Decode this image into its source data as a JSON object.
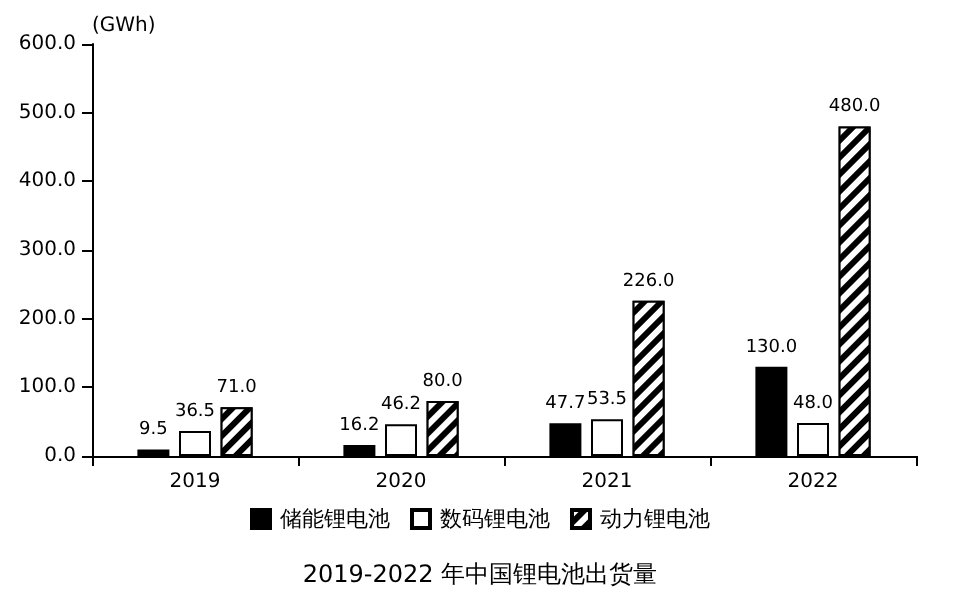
{
  "chart_data": {
    "type": "bar",
    "title": "2019-2022 年中国锂电池出货量",
    "ylabel": "(GWh)",
    "categories": [
      "2019",
      "2020",
      "2021",
      "2022"
    ],
    "series": [
      {
        "name": "储能锂电池",
        "color": "#000000",
        "values": [
          9.5,
          16.2,
          47.7,
          130.0
        ],
        "value_labels": [
          "9.5",
          "16.2",
          "47.7",
          "130.0"
        ]
      },
      {
        "name": "数码锂电池",
        "color": "#ffffff",
        "values": [
          36.5,
          46.2,
          53.5,
          48.0
        ],
        "value_labels": [
          "36.5",
          "46.2",
          "53.5",
          "48.0"
        ]
      },
      {
        "name": "动力锂电池",
        "color": "#000000",
        "values": [
          71.0,
          80.0,
          226.0,
          480.0
        ],
        "value_labels": [
          "71.0",
          "80.0",
          "226.0",
          "480.0"
        ]
      }
    ],
    "ylim": [
      0,
      600
    ],
    "yticks": [
      {
        "value": 0,
        "label": "0.0"
      },
      {
        "value": 100,
        "label": "100.0"
      },
      {
        "value": 200,
        "label": "200.0"
      },
      {
        "value": 300,
        "label": "300.0"
      },
      {
        "value": 400,
        "label": "400.0"
      },
      {
        "value": 500,
        "label": "500.0"
      },
      {
        "value": 600,
        "label": "600.0"
      }
    ],
    "grid": false,
    "legend": "bottom"
  }
}
